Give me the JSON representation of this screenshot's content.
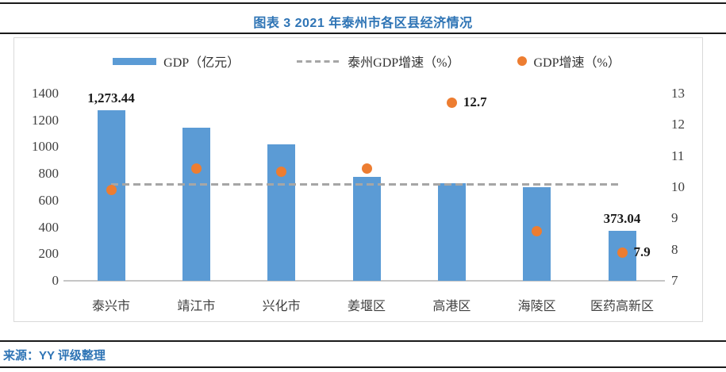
{
  "title": "图表 3 2021 年泰州市各区县经济情况",
  "source_note": "来源：YY 评级整理",
  "colors": {
    "title_blue": "#2E74B5",
    "bar_blue": "#5B9BD5",
    "dot_orange": "#ED7D31",
    "dash_gray": "#A6A6A6",
    "axis_text": "#404040",
    "frame_border": "#D9D9D9",
    "rule_dark": "#1A1A1A"
  },
  "chart_data": {
    "type": "bar",
    "subtype": "combo-bar-scatter-dashedline",
    "title": "图表 3 2021 年泰州市各区县经济情况",
    "categories": [
      "泰兴市",
      "靖江市",
      "兴化市",
      "姜堰区",
      "高港区",
      "海陵区",
      "医药高新区"
    ],
    "series": [
      {
        "name": "GDP（亿元）",
        "type": "bar",
        "axis": "left",
        "color": "#5B9BD5",
        "values": [
          1273.44,
          1145,
          1020,
          780,
          730,
          700,
          373.04
        ]
      },
      {
        "name": "泰州GDP增速（%）",
        "type": "dashed-line",
        "axis": "right",
        "color": "#A6A6A6",
        "values": [
          10.1,
          10.1,
          10.1,
          10.1,
          10.1,
          10.1,
          10.1
        ]
      },
      {
        "name": "GDP增速（%）",
        "type": "scatter",
        "axis": "right",
        "color": "#ED7D31",
        "values": [
          9.9,
          10.6,
          10.5,
          10.6,
          12.7,
          8.6,
          7.9
        ]
      }
    ],
    "data_labels": {
      "bar": {
        "0": "1,273.44",
        "6": "373.04"
      },
      "scatter": {
        "4": "12.7",
        "6": "7.9"
      }
    },
    "left_axis": {
      "min": 0,
      "max": 1400,
      "step": 200,
      "ticks": [
        "0",
        "200",
        "400",
        "600",
        "800",
        "1000",
        "1200",
        "1400"
      ]
    },
    "right_axis": {
      "min": 7,
      "max": 13,
      "step": 1,
      "ticks": [
        "7",
        "8",
        "9",
        "10",
        "11",
        "12",
        "13"
      ]
    },
    "legend_position": "top-center",
    "grid": false
  }
}
